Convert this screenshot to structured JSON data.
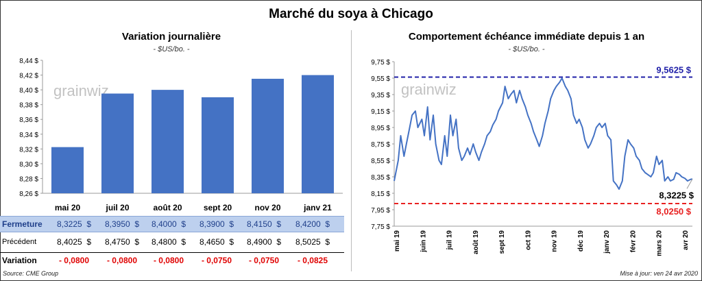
{
  "title": "Marché du soya à Chicago",
  "left_panel": {
    "title": "Variation journalière",
    "unit": "- $US/bo. -"
  },
  "right_panel": {
    "title": "Comportement échéance immédiate depuis 1 an",
    "unit": "- $US/bo. -"
  },
  "table": {
    "rows": [
      {
        "label": "Fermeture",
        "values": [
          "8,3225  $",
          "8,3950  $",
          "8,4000  $",
          "8,3900  $",
          "8,4150  $",
          "8,4200  $"
        ]
      },
      {
        "label": "Précédent",
        "values": [
          "8,4025  $",
          "8,4750  $",
          "8,4800  $",
          "8,4650  $",
          "8,4900  $",
          "8,5025  $"
        ]
      },
      {
        "label": "Variation",
        "values": [
          "- 0,0800",
          "- 0,0800",
          "- 0,0800",
          "- 0,0750",
          "- 0,0750",
          "- 0,0825"
        ]
      }
    ]
  },
  "footer": {
    "source": "Source: CME Group",
    "updated": "Mise à jour: ven 24 avr 2020"
  },
  "colors": {
    "bar": "#4472C4",
    "line": "#4472C4",
    "high_line": "#1F1FA8",
    "low_line": "#E82020",
    "fermeture_bg": "#BDD0EE",
    "negative": "#E00000"
  },
  "chart_data": [
    {
      "type": "bar",
      "categories": [
        "mai 20",
        "juil 20",
        "août 20",
        "sept 20",
        "nov 20",
        "janv 21"
      ],
      "values": [
        8.3225,
        8.395,
        8.4,
        8.39,
        8.415,
        8.42
      ],
      "ylim": [
        8.26,
        8.44
      ],
      "yticks": [
        "8,26 $",
        "8,28 $",
        "8,30 $",
        "8,32 $",
        "8,34 $",
        "8,36 $",
        "8,38 $",
        "8,40 $",
        "8,42 $",
        "8,44 $"
      ],
      "grid": false,
      "watermark": "grainwiz"
    },
    {
      "type": "line",
      "ylim": [
        7.75,
        9.75
      ],
      "yticks": [
        "7,75 $",
        "7,95 $",
        "8,15 $",
        "8,35 $",
        "8,55 $",
        "8,75 $",
        "8,95 $",
        "9,15 $",
        "9,35 $",
        "9,55 $",
        "9,75 $"
      ],
      "xticks": [
        "mai 19",
        "juin 19",
        "juil 19",
        "août 19",
        "sept 19",
        "oct 19",
        "nov 19",
        "déc 19",
        "janv 20",
        "févr 20",
        "mars 20",
        "avr 20"
      ],
      "x_range": [
        "2019-04-24",
        "2020-04-24"
      ],
      "series": [
        {
          "x": [
            "2019-04-24",
            "2019-04-29",
            "2019-05-02",
            "2019-05-06",
            "2019-05-09",
            "2019-05-13",
            "2019-05-16",
            "2019-05-20",
            "2019-05-23",
            "2019-05-28",
            "2019-05-31",
            "2019-06-04",
            "2019-06-07",
            "2019-06-11",
            "2019-06-14",
            "2019-06-18",
            "2019-06-21",
            "2019-06-25",
            "2019-06-28",
            "2019-07-02",
            "2019-07-05",
            "2019-07-09",
            "2019-07-12",
            "2019-07-16",
            "2019-07-19",
            "2019-07-23",
            "2019-07-26",
            "2019-07-30",
            "2019-08-02",
            "2019-08-06",
            "2019-08-09",
            "2019-08-13",
            "2019-08-16",
            "2019-08-20",
            "2019-08-23",
            "2019-08-27",
            "2019-08-30",
            "2019-09-04",
            "2019-09-07",
            "2019-09-11",
            "2019-09-14",
            "2019-09-18",
            "2019-09-21",
            "2019-09-25",
            "2019-09-28",
            "2019-10-02",
            "2019-10-05",
            "2019-10-09",
            "2019-10-12",
            "2019-10-16",
            "2019-10-19",
            "2019-10-23",
            "2019-10-26",
            "2019-10-30",
            "2019-11-02",
            "2019-11-06",
            "2019-11-09",
            "2019-11-13",
            "2019-11-16",
            "2019-11-20",
            "2019-11-23",
            "2019-11-27",
            "2019-11-30",
            "2019-12-04",
            "2019-12-07",
            "2019-12-11",
            "2019-12-14",
            "2019-12-18",
            "2019-12-21",
            "2019-12-25",
            "2019-12-28",
            "2020-01-01",
            "2020-01-04",
            "2020-01-08",
            "2020-01-11",
            "2020-01-15",
            "2020-01-18",
            "2020-01-22",
            "2020-01-25",
            "2020-01-29",
            "2020-02-01",
            "2020-02-05",
            "2020-02-08",
            "2020-02-12",
            "2020-02-15",
            "2020-02-19",
            "2020-02-22",
            "2020-02-26",
            "2020-02-29",
            "2020-03-04",
            "2020-03-07",
            "2020-03-11",
            "2020-03-14",
            "2020-03-18",
            "2020-03-21",
            "2020-03-25",
            "2020-03-28",
            "2020-04-01",
            "2020-04-04",
            "2020-04-08",
            "2020-04-11",
            "2020-04-15",
            "2020-04-18",
            "2020-04-22",
            "2020-04-24"
          ],
          "y": [
            8.3,
            8.55,
            8.85,
            8.6,
            8.75,
            8.95,
            9.1,
            9.15,
            8.95,
            9.05,
            8.85,
            9.2,
            8.8,
            9.1,
            8.75,
            8.55,
            8.5,
            8.85,
            8.6,
            9.1,
            8.85,
            9.05,
            8.7,
            8.55,
            8.6,
            8.7,
            8.62,
            8.75,
            8.65,
            8.55,
            8.65,
            8.75,
            8.85,
            8.9,
            8.98,
            9.05,
            9.15,
            9.25,
            9.45,
            9.3,
            9.35,
            9.4,
            9.25,
            9.4,
            9.3,
            9.2,
            9.1,
            9.0,
            8.9,
            8.8,
            8.72,
            8.85,
            9.0,
            9.15,
            9.3,
            9.4,
            9.45,
            9.5,
            9.55,
            9.45,
            9.4,
            9.3,
            9.1,
            9.0,
            9.05,
            8.95,
            8.8,
            8.7,
            8.75,
            8.85,
            8.95,
            9.0,
            8.95,
            9.0,
            8.85,
            8.8,
            8.3,
            8.25,
            8.2,
            8.3,
            8.6,
            8.8,
            8.75,
            8.7,
            8.6,
            8.55,
            8.45,
            8.4,
            8.38,
            8.35,
            8.4,
            8.6,
            8.5,
            8.55,
            8.3,
            8.35,
            8.3,
            8.32,
            8.4,
            8.38,
            8.35,
            8.33,
            8.3,
            8.32,
            8.3225
          ]
        }
      ],
      "annotations": [
        {
          "label": "9,5625 $",
          "value": 9.5625,
          "style": "dashed",
          "color": "#1F1FA8"
        },
        {
          "label": "8,0250 $",
          "value": 8.025,
          "style": "dashed",
          "color": "#E82020"
        },
        {
          "label": "8,3225 $",
          "value": 8.3225,
          "style": "callout"
        }
      ],
      "watermark": "grainwiz"
    }
  ]
}
